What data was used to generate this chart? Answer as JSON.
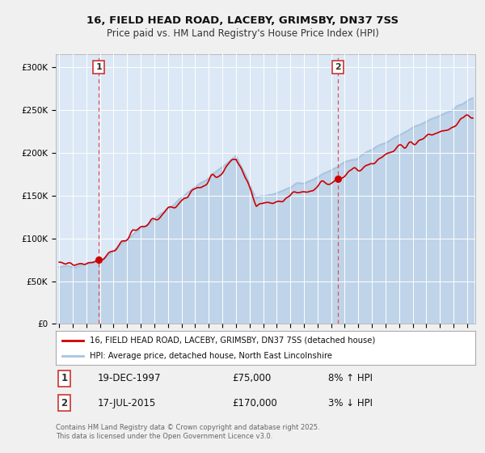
{
  "title_line1": "16, FIELD HEAD ROAD, LACEBY, GRIMSBY, DN37 7SS",
  "title_line2": "Price paid vs. HM Land Registry's House Price Index (HPI)",
  "ylabel_ticks": [
    "£0",
    "£50K",
    "£100K",
    "£150K",
    "£200K",
    "£250K",
    "£300K"
  ],
  "ytick_vals": [
    0,
    50000,
    100000,
    150000,
    200000,
    250000,
    300000
  ],
  "ylim": [
    0,
    315000
  ],
  "sale1_date": "19-DEC-1997",
  "sale1_price": 75000,
  "sale1_label": "1",
  "sale1_pct": "8% ↑ HPI",
  "sale2_date": "17-JUL-2015",
  "sale2_price": 170000,
  "sale2_label": "2",
  "sale2_pct": "3% ↓ HPI",
  "legend_line1": "16, FIELD HEAD ROAD, LACEBY, GRIMSBY, DN37 7SS (detached house)",
  "legend_line2": "HPI: Average price, detached house, North East Lincolnshire",
  "footnote": "Contains HM Land Registry data © Crown copyright and database right 2025.\nThis data is licensed under the Open Government Licence v3.0.",
  "hpi_color": "#a8c4e0",
  "price_color": "#cc0000",
  "plot_bg": "#dce8f5",
  "marker_color": "#cc0000",
  "vline_color": "#e05050",
  "grid_color": "#ffffff",
  "fig_bg": "#f0f0f0"
}
